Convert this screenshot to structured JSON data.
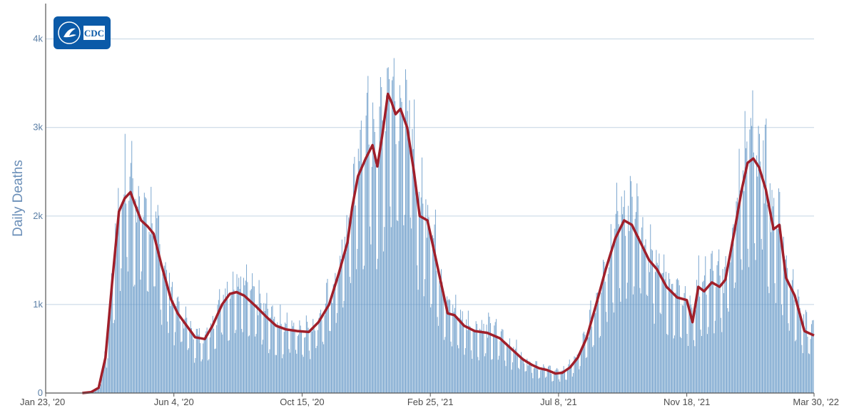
{
  "logo": {
    "text": "CDC",
    "bg_color": "#0b5aa8"
  },
  "chart_data": {
    "type": "bar",
    "ylabel": "Daily Deaths",
    "xlabel": "",
    "title": "",
    "ylim": [
      0,
      4400
    ],
    "xlim": [
      "2020-01-23",
      "2022-03-30"
    ],
    "y_ticks": [
      {
        "value": 0,
        "label": "0"
      },
      {
        "value": 1000,
        "label": "1k"
      },
      {
        "value": 2000,
        "label": "2k"
      },
      {
        "value": 3000,
        "label": "3k"
      },
      {
        "value": 4000,
        "label": "4k"
      }
    ],
    "x_ticks": [
      {
        "date": "2020-01-23",
        "label": "Jan 23, '20"
      },
      {
        "date": "2020-06-04",
        "label": "Jun 4, '20"
      },
      {
        "date": "2020-10-15",
        "label": "Oct 15, '20"
      },
      {
        "date": "2021-02-25",
        "label": "Feb 25, '21"
      },
      {
        "date": "2021-07-08",
        "label": "Jul 8, '21"
      },
      {
        "date": "2021-11-18",
        "label": "Nov 18, '21"
      },
      {
        "date": "2022-03-30",
        "label": "Mar 30, '22"
      }
    ],
    "grid": true,
    "colors": {
      "bars": "#5e93c4",
      "average": "#a01f2a",
      "grid": "#c3d4e3"
    },
    "seven_day_average": [
      [
        "2020-03-01",
        0
      ],
      [
        "2020-03-10",
        10
      ],
      [
        "2020-03-18",
        60
      ],
      [
        "2020-03-25",
        400
      ],
      [
        "2020-04-01",
        1250
      ],
      [
        "2020-04-08",
        2050
      ],
      [
        "2020-04-14",
        2200
      ],
      [
        "2020-04-20",
        2270
      ],
      [
        "2020-04-24",
        2150
      ],
      [
        "2020-05-01",
        1950
      ],
      [
        "2020-05-08",
        1880
      ],
      [
        "2020-05-14",
        1800
      ],
      [
        "2020-05-22",
        1450
      ],
      [
        "2020-06-01",
        1060
      ],
      [
        "2020-06-08",
        900
      ],
      [
        "2020-06-16",
        780
      ],
      [
        "2020-06-26",
        630
      ],
      [
        "2020-07-06",
        610
      ],
      [
        "2020-07-14",
        760
      ],
      [
        "2020-07-24",
        1000
      ],
      [
        "2020-08-01",
        1120
      ],
      [
        "2020-08-08",
        1140
      ],
      [
        "2020-08-16",
        1100
      ],
      [
        "2020-08-28",
        980
      ],
      [
        "2020-09-08",
        860
      ],
      [
        "2020-09-18",
        760
      ],
      [
        "2020-09-28",
        720
      ],
      [
        "2020-10-10",
        700
      ],
      [
        "2020-10-22",
        690
      ],
      [
        "2020-11-01",
        800
      ],
      [
        "2020-11-12",
        1000
      ],
      [
        "2020-11-22",
        1350
      ],
      [
        "2020-12-01",
        1700
      ],
      [
        "2020-12-06",
        2100
      ],
      [
        "2020-12-12",
        2450
      ],
      [
        "2020-12-20",
        2650
      ],
      [
        "2020-12-27",
        2800
      ],
      [
        "2021-01-01",
        2560
      ],
      [
        "2021-01-06",
        2900
      ],
      [
        "2021-01-12",
        3380
      ],
      [
        "2021-01-16",
        3280
      ],
      [
        "2021-01-20",
        3150
      ],
      [
        "2021-01-25",
        3210
      ],
      [
        "2021-02-01",
        3000
      ],
      [
        "2021-02-08",
        2500
      ],
      [
        "2021-02-14",
        2000
      ],
      [
        "2021-02-22",
        1950
      ],
      [
        "2021-03-01",
        1600
      ],
      [
        "2021-03-08",
        1250
      ],
      [
        "2021-03-15",
        900
      ],
      [
        "2021-03-22",
        880
      ],
      [
        "2021-04-01",
        760
      ],
      [
        "2021-04-12",
        700
      ],
      [
        "2021-04-25",
        680
      ],
      [
        "2021-05-08",
        620
      ],
      [
        "2021-05-20",
        500
      ],
      [
        "2021-06-01",
        380
      ],
      [
        "2021-06-10",
        320
      ],
      [
        "2021-06-18",
        280
      ],
      [
        "2021-06-26",
        260
      ],
      [
        "2021-07-05",
        220
      ],
      [
        "2021-07-12",
        230
      ],
      [
        "2021-07-20",
        290
      ],
      [
        "2021-07-28",
        400
      ],
      [
        "2021-08-06",
        620
      ],
      [
        "2021-08-16",
        1000
      ],
      [
        "2021-08-26",
        1400
      ],
      [
        "2021-09-05",
        1750
      ],
      [
        "2021-09-14",
        1950
      ],
      [
        "2021-09-22",
        1900
      ],
      [
        "2021-10-01",
        1700
      ],
      [
        "2021-10-10",
        1500
      ],
      [
        "2021-10-18",
        1400
      ],
      [
        "2021-10-28",
        1200
      ],
      [
        "2021-11-08",
        1080
      ],
      [
        "2021-11-18",
        1050
      ],
      [
        "2021-11-24",
        800
      ],
      [
        "2021-11-30",
        1200
      ],
      [
        "2021-12-06",
        1150
      ],
      [
        "2021-12-14",
        1250
      ],
      [
        "2021-12-22",
        1200
      ],
      [
        "2021-12-28",
        1280
      ],
      [
        "2022-01-06",
        1800
      ],
      [
        "2022-01-14",
        2300
      ],
      [
        "2022-01-20",
        2600
      ],
      [
        "2022-01-26",
        2650
      ],
      [
        "2022-02-01",
        2550
      ],
      [
        "2022-02-08",
        2300
      ],
      [
        "2022-02-16",
        1850
      ],
      [
        "2022-02-22",
        1900
      ],
      [
        "2022-03-01",
        1300
      ],
      [
        "2022-03-10",
        1100
      ],
      [
        "2022-03-20",
        700
      ],
      [
        "2022-03-30",
        650
      ]
    ]
  }
}
